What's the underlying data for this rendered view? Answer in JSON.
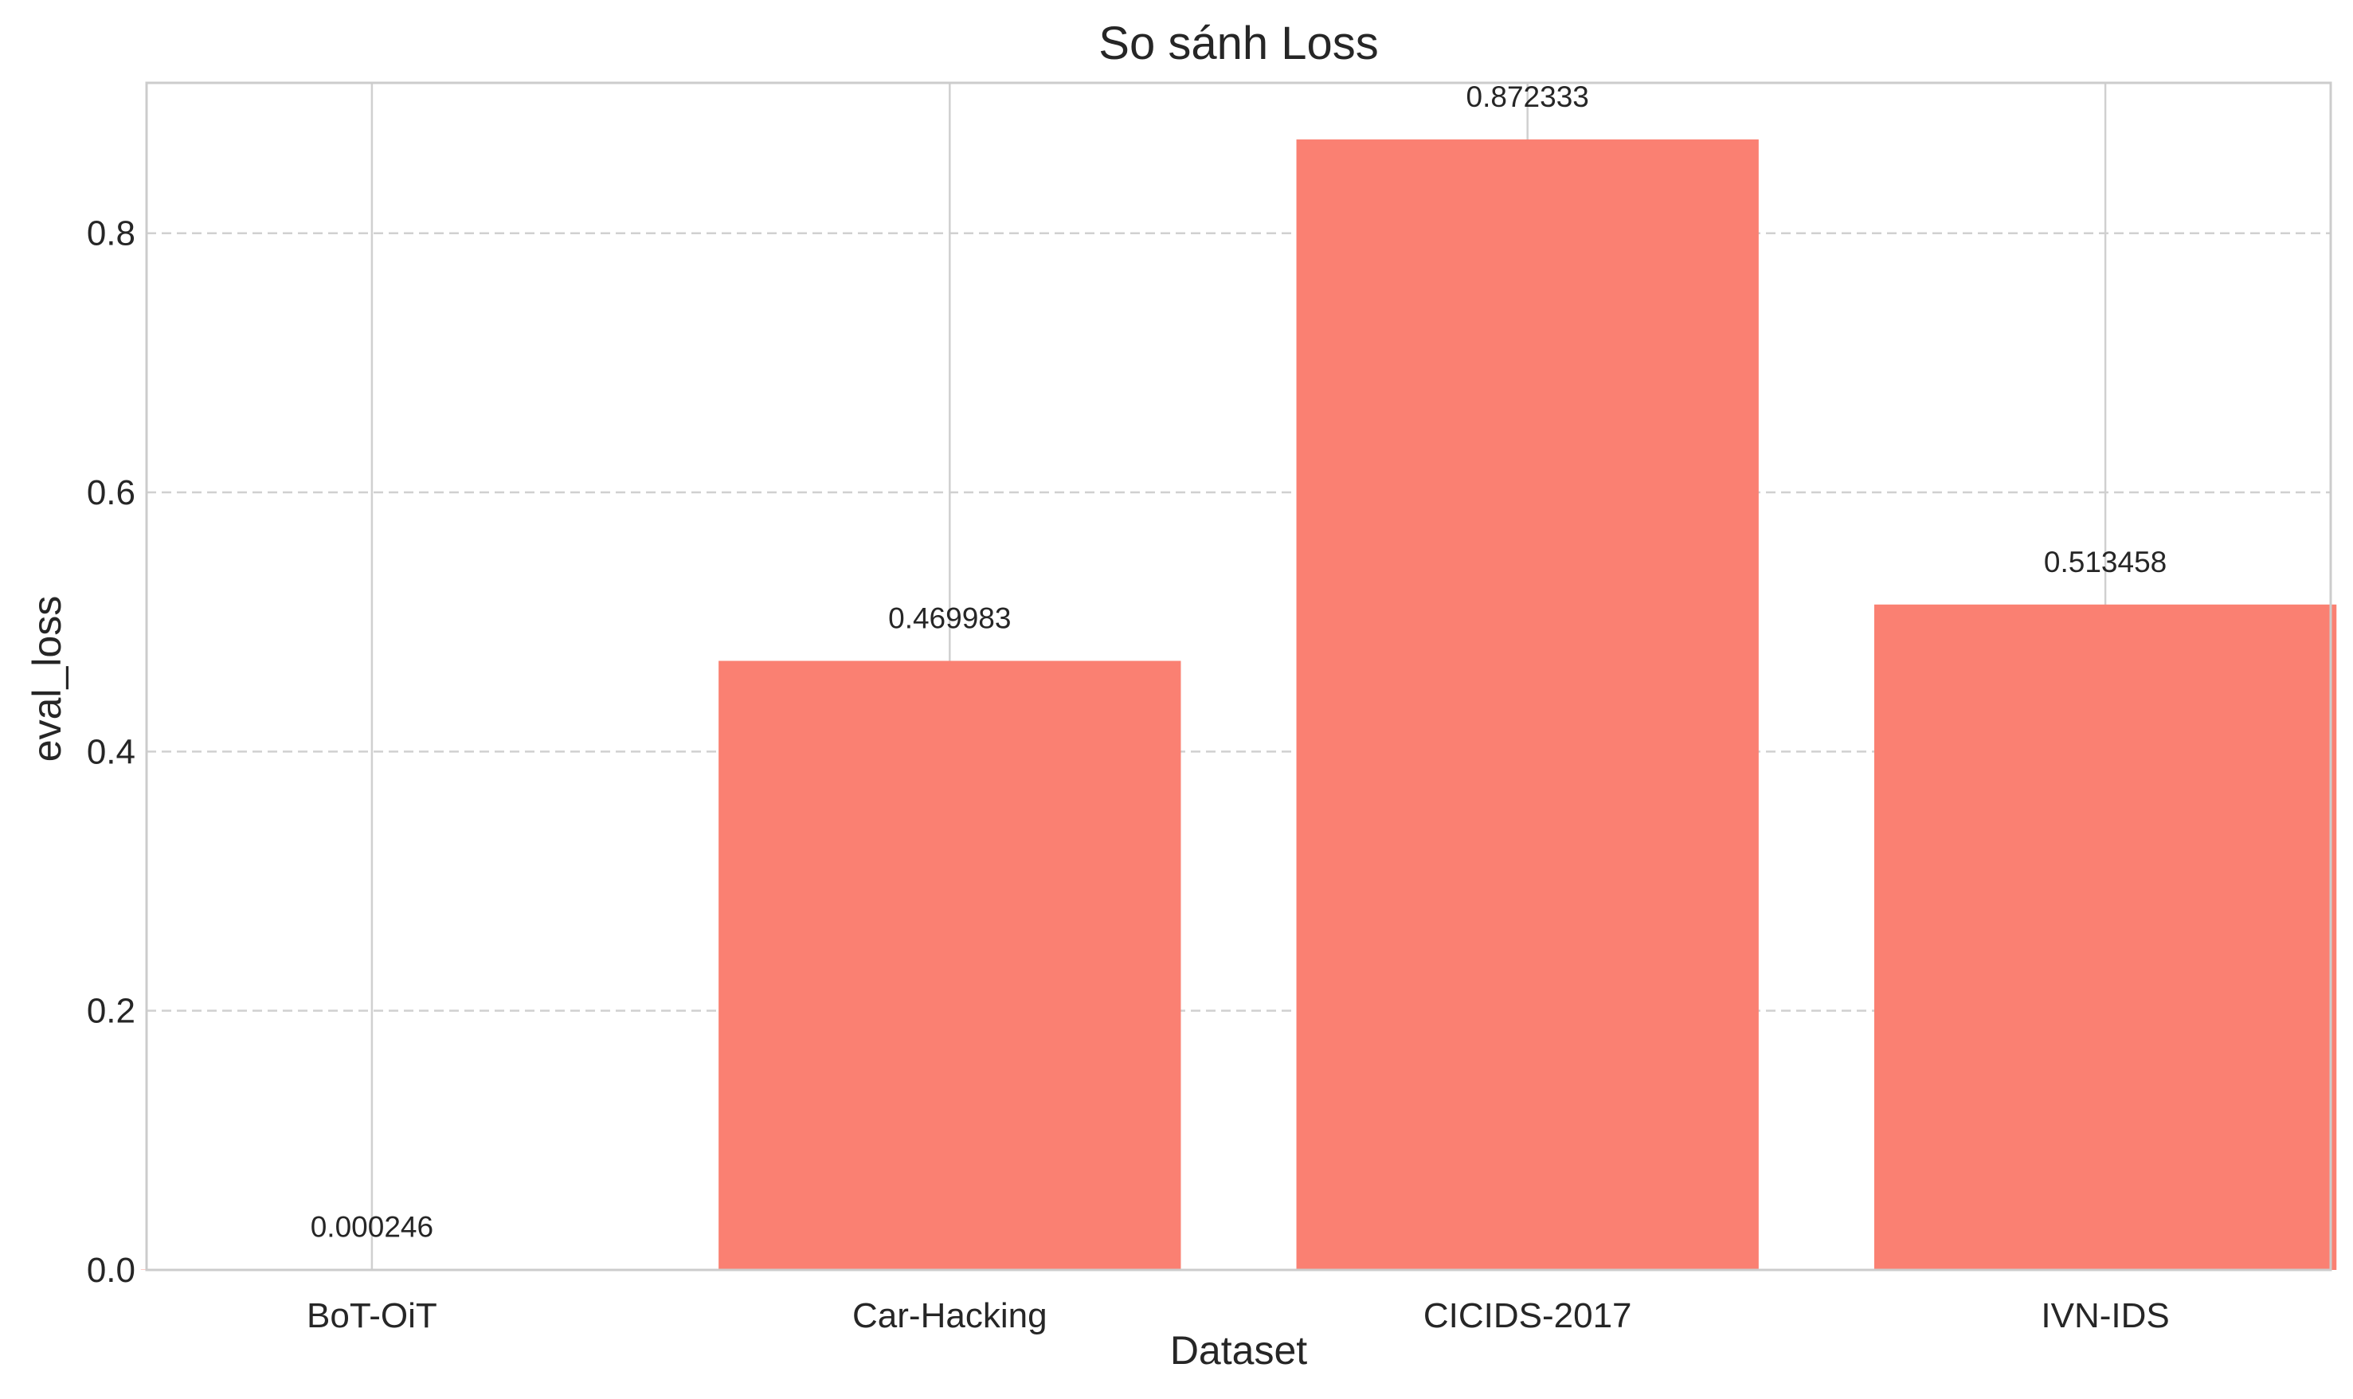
{
  "chart_data": {
    "type": "bar",
    "title": "So sánh Loss",
    "xlabel": "Dataset",
    "ylabel": "eval_loss",
    "categories": [
      "BoT-OiT",
      "Car-Hacking",
      "CICIDS-2017",
      "IVN-IDS"
    ],
    "values": [
      0.000246,
      0.469983,
      0.872333,
      0.513458
    ],
    "value_labels": [
      "0.000246",
      "0.469983",
      "0.872333",
      "0.513458"
    ],
    "ylim": [
      0,
      0.916
    ],
    "yticks": [
      0.0,
      0.2,
      0.4,
      0.6,
      0.8
    ],
    "ytick_labels": [
      "0.0",
      "0.2",
      "0.4",
      "0.6",
      "0.8"
    ],
    "grid": true,
    "bar_color": "#fa8072"
  }
}
